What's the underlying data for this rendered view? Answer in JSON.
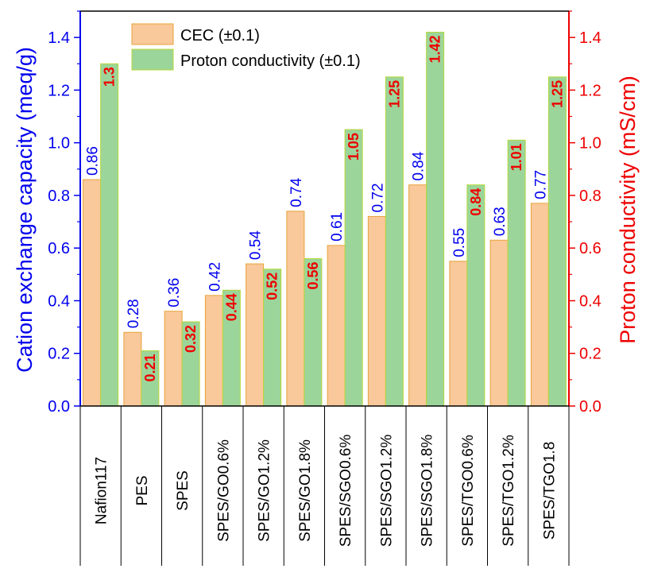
{
  "chart_data": {
    "type": "bar",
    "categories": [
      "Nafion117",
      "PES",
      "SPES",
      "SPES/GO0.6%",
      "SPES/GO1.2%",
      "SPES/GO1.8%",
      "SPES/SGO0.6%",
      "SPES/SGO1.2%",
      "SPES/SGO1.8%",
      "SPES/TGO0.6%",
      "SPES/TGO1.2%",
      "SPES/TGO1.8"
    ],
    "series": [
      {
        "name": "CEC (±0.1)",
        "axis": "left",
        "values": [
          0.86,
          0.28,
          0.36,
          0.42,
          0.54,
          0.74,
          0.61,
          0.72,
          0.84,
          0.55,
          0.63,
          0.77
        ],
        "labels": [
          "0.86",
          "0.28",
          "0.36",
          "0.42",
          "0.54",
          "0.74",
          "0.61",
          "0.72",
          "0.84",
          "0.55",
          "0.63",
          "0.77"
        ],
        "fill": "#f9c89b",
        "stroke": "#e8a33a",
        "label_color": "#0000ee"
      },
      {
        "name": "Proton conductivity (±0.1)",
        "axis": "right",
        "values": [
          1.3,
          0.21,
          0.32,
          0.44,
          0.52,
          0.56,
          1.05,
          1.25,
          1.42,
          0.84,
          1.01,
          1.25
        ],
        "labels": [
          "1.3",
          "0.21",
          "0.32",
          "0.44",
          "0.52",
          "0.56",
          "1.05",
          "1.25",
          "1.42",
          "0.84",
          "1.01",
          "1.25"
        ],
        "fill": "#9cd59a",
        "stroke": "#b7d83a",
        "label_color": "#ee0000"
      }
    ],
    "ylabel": "Cation exchange capacity (meq/g)",
    "y2label": "Proton conductivity (mS/cm)",
    "ylim": [
      0,
      1.5
    ],
    "y2lim": [
      0,
      1.5
    ],
    "yticks": [
      "0.0",
      "0.2",
      "0.4",
      "0.6",
      "0.8",
      "1.0",
      "1.2",
      "1.4"
    ],
    "y2ticks": [
      "0.0",
      "0.2",
      "0.4",
      "0.6",
      "0.8",
      "1.0",
      "1.2",
      "1.4"
    ],
    "ylabel_color": "#0000ee",
    "y2label_color": "#ee0000",
    "legend_position": "top-left",
    "grid": false
  }
}
